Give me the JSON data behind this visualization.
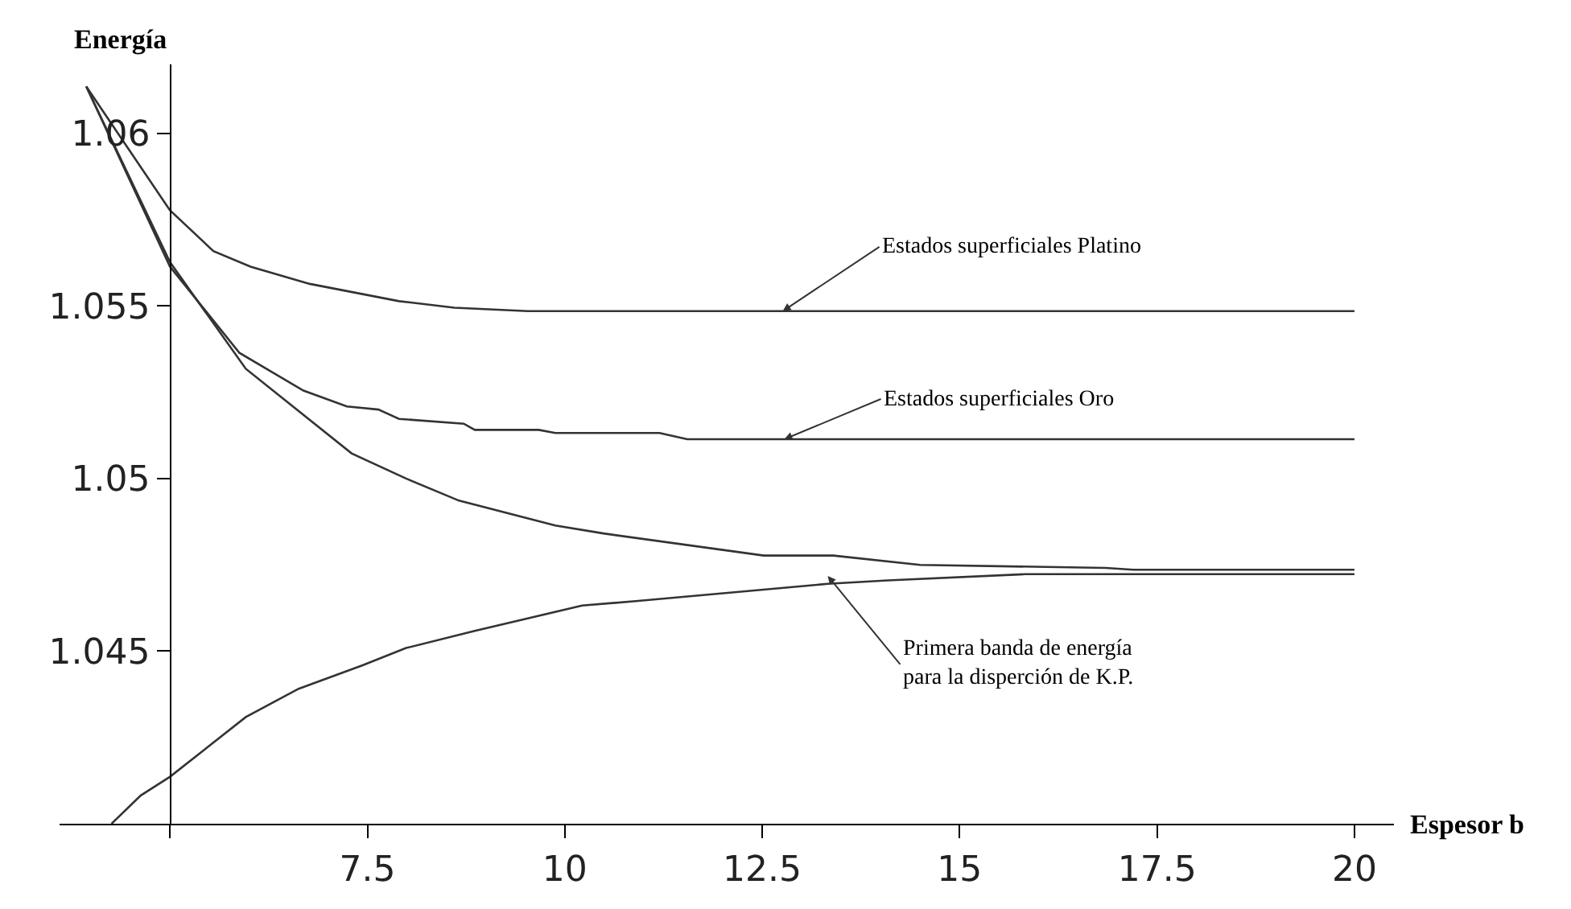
{
  "chart_data": {
    "type": "line",
    "xlabel": "Espesor b",
    "ylabel": "Energía",
    "xlim": [
      3.6,
      20.5
    ],
    "ylim": [
      1.04,
      1.062
    ],
    "xticks": [
      {
        "value": 5,
        "label": null
      },
      7.5,
      10,
      12.5,
      15,
      17.5,
      20
    ],
    "yticks": [
      1.045,
      1.05,
      1.055,
      1.06
    ],
    "marker": "none",
    "line_style": "solid",
    "series": [
      {
        "color": "#333333",
        "x": [
          3.94,
          5,
          5.55,
          6.02,
          6.77,
          7.9,
          8.6,
          9.53,
          20
        ],
        "values": [
          1.06136,
          1.05777,
          1.05659,
          1.05614,
          1.05564,
          1.05514,
          1.05495,
          1.05485,
          1.05485
        ]
      },
      {
        "color": "#333333",
        "x": [
          3.94,
          5,
          5.88,
          6.69,
          7.24,
          7.64,
          7.9,
          8.72,
          8.86,
          9.67,
          9.88,
          11.2,
          11.55,
          20
        ],
        "values": [
          1.06136,
          1.05614,
          1.05364,
          1.05255,
          1.05209,
          1.052,
          1.05173,
          1.05159,
          1.05141,
          1.05141,
          1.05132,
          1.05132,
          1.05114,
          1.05114
        ]
      },
      {
        "color": "#333333",
        "x": [
          3.94,
          5,
          5.96,
          7.3,
          7.99,
          8.66,
          9.88,
          10.49,
          12.52,
          13.4,
          14.5,
          16.85,
          17.2,
          20
        ],
        "values": [
          1.06136,
          1.05627,
          1.05318,
          1.05073,
          1.05,
          1.04936,
          1.04864,
          1.04841,
          1.04777,
          1.04777,
          1.0475,
          1.04741,
          1.04736,
          1.04736
        ]
      },
      {
        "color": "#333333",
        "x": [
          4.26,
          4.63,
          5,
          5.96,
          6.63,
          7.44,
          7.99,
          8.86,
          9.53,
          10.22,
          10.9,
          13.33,
          14.09,
          15.83,
          20
        ],
        "values": [
          1.04,
          1.04082,
          1.04136,
          1.04309,
          1.04391,
          1.04459,
          1.04509,
          1.04559,
          1.04595,
          1.04632,
          1.04645,
          1.04695,
          1.04705,
          1.04723,
          1.04723
        ]
      }
    ],
    "annotations": [
      {
        "text": "Estados superficiales Platino",
        "x": 12.76,
        "y": 1.05485
      },
      {
        "text": "Estados superficiales Oro",
        "x": 12.78,
        "y": 1.05114
      },
      {
        "text": "Primera banda de energía\npara la disperción de K.P.",
        "x": 13.33,
        "y": 1.04718
      }
    ]
  }
}
